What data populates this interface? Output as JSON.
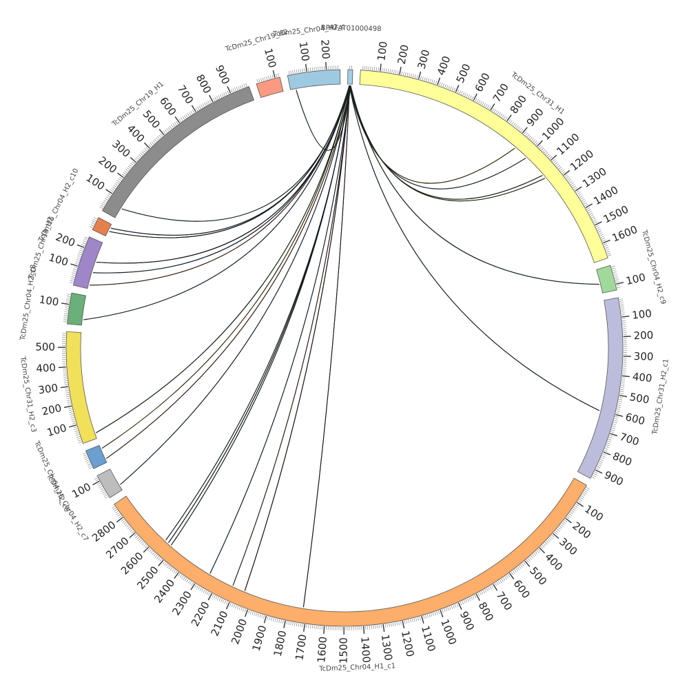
{
  "chart_data": {
    "type": "chord",
    "segments": [
      {
        "name": "RPRFAT01000498",
        "length": 25,
        "color": "#a6cee3",
        "ticks": []
      },
      {
        "name": "TcDm25_Chr31_H1",
        "length": 1680,
        "color": "#ffff99",
        "ticks": [
          100,
          200,
          300,
          400,
          500,
          600,
          700,
          800,
          900,
          1000,
          1100,
          1200,
          1300,
          1400,
          1500,
          1600
        ]
      },
      {
        "name": "TcDm25_Chr04_H2_c9",
        "length": 130,
        "color": "#a1d99b",
        "ticks": [
          100
        ]
      },
      {
        "name": "TcDm25_Chr31_H2_c1",
        "length": 950,
        "color": "#bcbddc",
        "ticks": [
          100,
          200,
          300,
          400,
          500,
          600,
          700,
          800,
          900
        ]
      },
      {
        "name": "TcDm25_Chr04_H1_c1",
        "length": 2880,
        "color": "#fdae6b",
        "ticks": [
          100,
          200,
          300,
          400,
          500,
          600,
          700,
          800,
          900,
          1000,
          1100,
          1200,
          1300,
          1400,
          1500,
          1600,
          1700,
          1800,
          1900,
          2000,
          2100,
          2200,
          2300,
          2400,
          2500,
          2600,
          2700,
          2800
        ]
      },
      {
        "name": "TcDm25_Chr04_H2_c7",
        "length": 130,
        "color": "#bdbdbd",
        "ticks": [
          100
        ]
      },
      {
        "name": "TcDm25_Chr04_H2_c6",
        "length": 100,
        "color": "#6a9fd0",
        "ticks": []
      },
      {
        "name": "TcDm25_Chr31_H2_c3",
        "length": 580,
        "color": "#f0e05a",
        "ticks": [
          100,
          200,
          300,
          400,
          500
        ]
      },
      {
        "name": "TcDm25_Chr04_H2_c8",
        "length": 160,
        "color": "#6baf7a",
        "ticks": [
          100
        ]
      },
      {
        "name": "TcDm25_Chr19_H2",
        "length": 260,
        "color": "#9e86c8",
        "ticks": [
          100,
          200
        ]
      },
      {
        "name": "TcDm25_Chr04_H2_c10",
        "length": 70,
        "color": "#e6804c",
        "ticks": []
      },
      {
        "name": "TcDm25_Chr19_H1",
        "length": 1000,
        "color": "#8c8c8c",
        "ticks": [
          100,
          200,
          300,
          400,
          500,
          600,
          700,
          800,
          900
        ]
      },
      {
        "name": "TcDm25_Chr19_H2",
        "length": 125,
        "color": "#fb9a82",
        "ticks": [
          100
        ]
      },
      {
        "name": "TcDm25_Chr04_H2_c",
        "length": 270,
        "color": "#9ecae1",
        "ticks": [
          100,
          200
        ]
      }
    ],
    "links": [
      {
        "source": "RPRFAT01000498",
        "target": "TcDm25_Chr31_H1",
        "pos": 920,
        "color": "#c8a000"
      },
      {
        "source": "RPRFAT01000498",
        "target": "TcDm25_Chr31_H1",
        "pos": 1000,
        "color": "#3a6fb0"
      },
      {
        "source": "RPRFAT01000498",
        "target": "TcDm25_Chr31_H1",
        "pos": 1130,
        "color": "#2f7a2f"
      },
      {
        "source": "RPRFAT01000498",
        "target": "TcDm25_Chr31_H1",
        "pos": 1150,
        "color": "#5a8c2a"
      },
      {
        "source": "RPRFAT01000498",
        "target": "TcDm25_Chr04_H2_c9",
        "pos": 80,
        "color": "#2f6f3f"
      },
      {
        "source": "RPRFAT01000498",
        "target": "TcDm25_Chr31_H2_c1",
        "pos": 600,
        "color": "#3a6fb0"
      },
      {
        "source": "RPRFAT01000498",
        "target": "TcDm25_Chr04_H1_c1",
        "pos": 1720,
        "color": "#444444"
      },
      {
        "source": "RPRFAT01000498",
        "target": "TcDm25_Chr04_H1_c1",
        "pos": 2050,
        "color": "#222222"
      },
      {
        "source": "RPRFAT01000498",
        "target": "TcDm25_Chr04_H1_c1",
        "pos": 2120,
        "color": "#d06020"
      },
      {
        "source": "RPRFAT01000498",
        "target": "TcDm25_Chr04_H1_c1",
        "pos": 2260,
        "color": "#3a6fb0"
      },
      {
        "source": "RPRFAT01000498",
        "target": "TcDm25_Chr04_H1_c1",
        "pos": 2520,
        "color": "#2f7a2f"
      },
      {
        "source": "RPRFAT01000498",
        "target": "TcDm25_Chr04_H1_c1",
        "pos": 2540,
        "color": "#222222"
      },
      {
        "source": "RPRFAT01000498",
        "target": "TcDm25_Chr04_H1_c1",
        "pos": 2560,
        "color": "#3a6fb0"
      },
      {
        "source": "RPRFAT01000498",
        "target": "TcDm25_Chr04_H2_c7",
        "pos": 30,
        "color": "#3a6fb0"
      },
      {
        "source": "RPRFAT01000498",
        "target": "TcDm25_Chr04_H2_c6",
        "pos": 20,
        "color": "#d06020"
      },
      {
        "source": "RPRFAT01000498",
        "target": "TcDm25_Chr04_H2_c6",
        "pos": 80,
        "color": "#c8a000"
      },
      {
        "source": "RPRFAT01000498",
        "target": "TcDm25_Chr31_H2_c3",
        "pos": 30,
        "color": "#2f7a2f"
      },
      {
        "source": "RPRFAT01000498",
        "target": "TcDm25_Chr04_H2_c8",
        "pos": 30,
        "color": "#3a6fb0"
      },
      {
        "source": "RPRFAT01000498",
        "target": "TcDm25_Chr19_H2",
        "pos": 20,
        "color": "#d06020"
      },
      {
        "source": "RPRFAT01000498",
        "target": "TcDm25_Chr19_H2",
        "pos": 150,
        "color": "#222222"
      },
      {
        "source": "RPRFAT01000498",
        "target": "TcDm25_Chr04_H2_c10",
        "pos": 30,
        "color": "#222222"
      },
      {
        "source": "RPRFAT01000498",
        "target": "TcDm25_Chr04_H2_c10",
        "pos": 50,
        "color": "#3a6fb0"
      },
      {
        "source": "RPRFAT01000498",
        "target": "TcDm25_Chr19_H1",
        "pos": 60,
        "color": "#2f7a2f"
      },
      {
        "source": "RPRFAT01000498",
        "target": "TcDm25_Chr19_H2",
        "pos": 90,
        "color": "#3a6fb0"
      },
      {
        "source": "RPRFAT01000498",
        "target": "TcDm25_Chr04_H2_c",
        "pos": 30,
        "color": "#2f7a2f"
      }
    ]
  }
}
